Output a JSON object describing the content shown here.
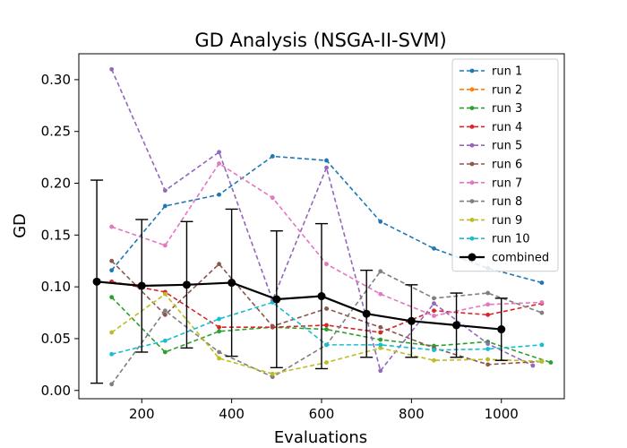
{
  "chart_data": {
    "type": "line",
    "title": "GD Analysis (NSGA-II-SVM)",
    "xlabel": "Evaluations",
    "ylabel": "GD",
    "xlim": [
      60,
      1140
    ],
    "ylim": [
      -0.008,
      0.325
    ],
    "xticks": [
      200,
      400,
      600,
      800,
      1000
    ],
    "yticks": [
      0.0,
      0.05,
      0.1,
      0.15,
      0.2,
      0.25,
      0.3
    ],
    "ytick_labels": [
      "0.00",
      "0.05",
      "0.10",
      "0.15",
      "0.20",
      "0.25",
      "0.30"
    ],
    "grid": false,
    "legend": "top-right",
    "series": [
      {
        "name": "run 1",
        "color": "#1f77b4",
        "style": "dashed",
        "x": [
          133,
          252,
          372,
          491,
          611,
          731,
          850,
          970,
          1090
        ],
        "y": [
          0.116,
          0.178,
          0.189,
          0.226,
          0.222,
          0.163,
          0.137,
          0.118,
          0.104
        ]
      },
      {
        "name": "run 2",
        "color": "#ff7f0e",
        "style": "dashed",
        "x": [],
        "y": []
      },
      {
        "name": "run 3",
        "color": "#2ca02c",
        "style": "dashed",
        "x": [
          133,
          252,
          372,
          491,
          611,
          731,
          850,
          970,
          1110
        ],
        "y": [
          0.09,
          0.037,
          0.057,
          0.061,
          0.059,
          0.049,
          0.043,
          0.047,
          0.027
        ]
      },
      {
        "name": "run 4",
        "color": "#d62728",
        "style": "dashed",
        "x": [
          133,
          252,
          372,
          491,
          611,
          731,
          850,
          970,
          1090
        ],
        "y": [
          0.105,
          0.095,
          0.061,
          0.061,
          0.063,
          0.056,
          0.077,
          0.073,
          0.084
        ]
      },
      {
        "name": "run 5",
        "color": "#9467bd",
        "style": "dashed",
        "x": [
          133,
          252,
          372,
          491,
          611,
          731,
          850,
          970,
          1070
        ],
        "y": [
          0.31,
          0.193,
          0.23,
          0.087,
          0.215,
          0.019,
          0.084,
          0.045,
          0.024
        ]
      },
      {
        "name": "run 6",
        "color": "#8c564b",
        "style": "dashed",
        "x": [
          133,
          252,
          372,
          491,
          611,
          731,
          850,
          970,
          1090
        ],
        "y": [
          0.125,
          0.073,
          0.122,
          0.062,
          0.079,
          0.061,
          0.041,
          0.025,
          0.028
        ]
      },
      {
        "name": "run 7",
        "color": "#e377c2",
        "style": "dashed",
        "x": [
          133,
          252,
          372,
          491,
          611,
          731,
          850,
          970,
          1090
        ],
        "y": [
          0.158,
          0.14,
          0.219,
          0.186,
          0.122,
          0.093,
          0.072,
          0.083,
          0.085
        ]
      },
      {
        "name": "run 8",
        "color": "#7f7f7f",
        "style": "dashed",
        "x": [
          133,
          252,
          372,
          491,
          611,
          731,
          850,
          970,
          1090
        ],
        "y": [
          0.006,
          0.077,
          0.037,
          0.013,
          0.044,
          0.115,
          0.089,
          0.094,
          0.075
        ]
      },
      {
        "name": "run 9",
        "color": "#bcbd22",
        "style": "dashed",
        "x": [
          133,
          252,
          372,
          491,
          611,
          731,
          850,
          970,
          1090
        ],
        "y": [
          0.056,
          0.093,
          0.031,
          0.016,
          0.027,
          0.041,
          0.029,
          0.03,
          0.028
        ]
      },
      {
        "name": "run 10",
        "color": "#17becf",
        "style": "dashed",
        "x": [
          133,
          252,
          372,
          491,
          611,
          731,
          850,
          970,
          1090
        ],
        "y": [
          0.035,
          0.048,
          0.069,
          0.085,
          0.044,
          0.044,
          0.039,
          0.04,
          0.044
        ]
      },
      {
        "name": "combined",
        "color": "#000000",
        "style": "solid",
        "x": [
          100,
          200,
          300,
          400,
          500,
          600,
          700,
          800,
          900,
          1000
        ],
        "y": [
          0.105,
          0.101,
          0.102,
          0.104,
          0.088,
          0.091,
          0.074,
          0.067,
          0.063,
          0.059
        ],
        "err": [
          0.098,
          0.064,
          0.061,
          0.071,
          0.066,
          0.07,
          0.042,
          0.035,
          0.031,
          0.03
        ]
      }
    ]
  }
}
